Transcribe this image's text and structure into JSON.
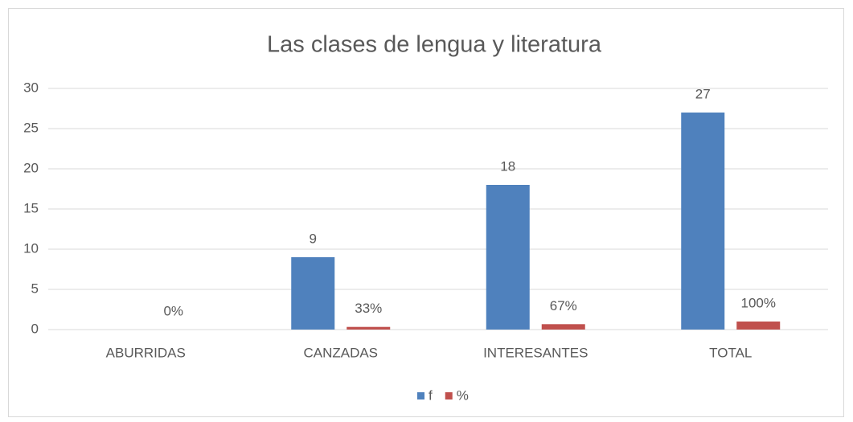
{
  "chart_data": {
    "type": "bar",
    "title": "Las clases de lengua y literatura",
    "categories": [
      "ABURRIDAS",
      "CANZADAS",
      "INTERESANTES",
      "TOTAL"
    ],
    "series": [
      {
        "name": "f",
        "color": "#4f81bd",
        "values": [
          0,
          9,
          18,
          27
        ],
        "value_labels": [
          null,
          "9",
          "18",
          "27"
        ]
      },
      {
        "name": "%",
        "color": "#c0504d",
        "values": [
          0,
          0.33,
          0.67,
          1
        ],
        "value_labels": [
          "0%",
          "33%",
          "67%",
          "100%"
        ]
      }
    ],
    "ylim": [
      0,
      30
    ],
    "yticks": [
      0,
      5,
      10,
      15,
      20,
      25,
      30
    ],
    "grid": true,
    "legend": "bottom"
  }
}
